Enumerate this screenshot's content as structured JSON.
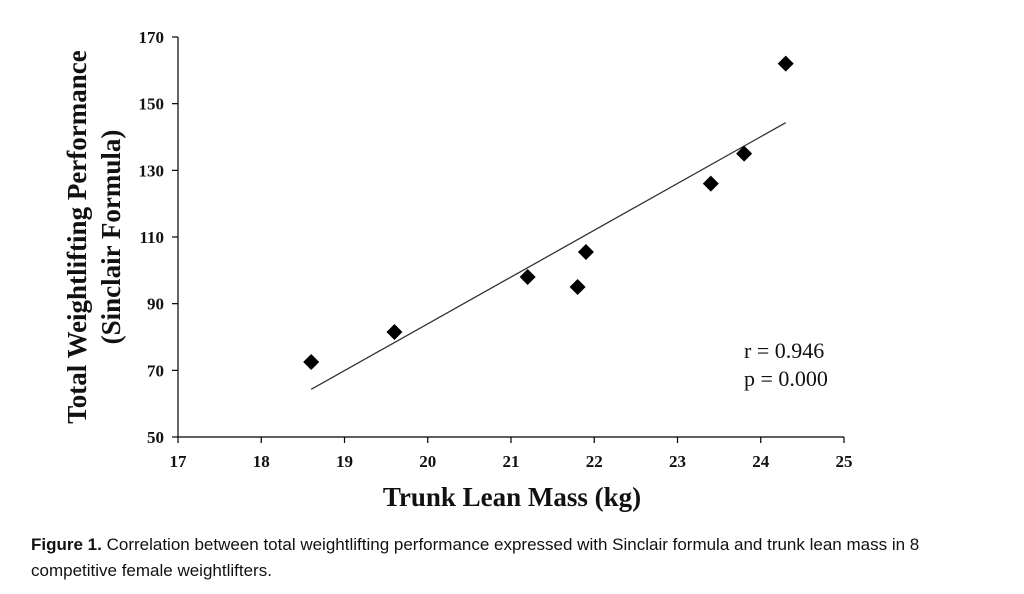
{
  "chart_data": {
    "type": "scatter",
    "xlabel": "Trunk Lean Mass (kg)",
    "ylabel_line1": "Total Weightlifting Performance",
    "ylabel_line2": "(Sinclair Formula)",
    "xlim": [
      17,
      25
    ],
    "ylim": [
      50,
      170
    ],
    "x_ticks": [
      "17",
      "18",
      "19",
      "20",
      "21",
      "22",
      "23",
      "24",
      "25"
    ],
    "y_ticks": [
      "50",
      "70",
      "90",
      "110",
      "130",
      "150",
      "170"
    ],
    "points": [
      {
        "x": 18.6,
        "y": 72.5
      },
      {
        "x": 19.6,
        "y": 81.5
      },
      {
        "x": 21.2,
        "y": 98
      },
      {
        "x": 21.8,
        "y": 95
      },
      {
        "x": 21.9,
        "y": 105.5
      },
      {
        "x": 23.4,
        "y": 126
      },
      {
        "x": 23.8,
        "y": 135
      },
      {
        "x": 24.3,
        "y": 162
      }
    ],
    "trendline": {
      "x": [
        18.6,
        24.3
      ],
      "y": [
        64.3,
        144.3
      ]
    },
    "marker": "diamond",
    "marker_color": "#000000",
    "grid": false,
    "annotations": [
      "r = 0.946",
      "p = 0.000"
    ]
  },
  "caption": {
    "label": "Figure 1.",
    "text": "Correlation between total weightlifting performance expressed with Sinclair formula and trunk lean mass in 8 competitive female weightlifters."
  }
}
